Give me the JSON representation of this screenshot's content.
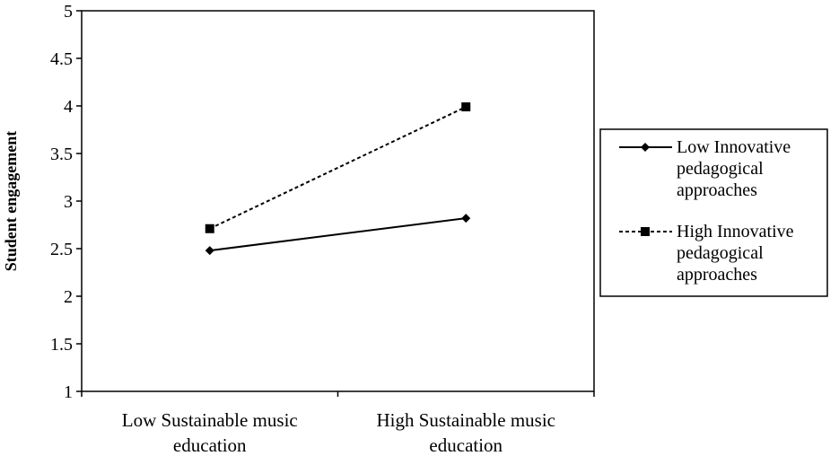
{
  "chart_data": {
    "type": "line",
    "categories": [
      [
        "Low Sustainable music",
        "education"
      ],
      [
        "High Sustainable music",
        "education"
      ]
    ],
    "ylabel": "Student engagement",
    "xlabel": "",
    "ylim": [
      1,
      5
    ],
    "yticks": [
      1,
      1.5,
      2,
      2.5,
      3,
      3.5,
      4,
      4.5,
      5
    ],
    "grid": false,
    "legend_position": "right",
    "series": [
      {
        "name": [
          "Low Innovative",
          "pedagogical",
          "approaches"
        ],
        "values": [
          2.48,
          2.82
        ],
        "marker": "diamond",
        "line_style": "solid",
        "color": "#000000"
      },
      {
        "name": [
          "High Innovative",
          "pedagogical",
          "approaches"
        ],
        "values": [
          2.71,
          3.99
        ],
        "marker": "square",
        "line_style": "dashed",
        "color": "#000000"
      }
    ]
  }
}
